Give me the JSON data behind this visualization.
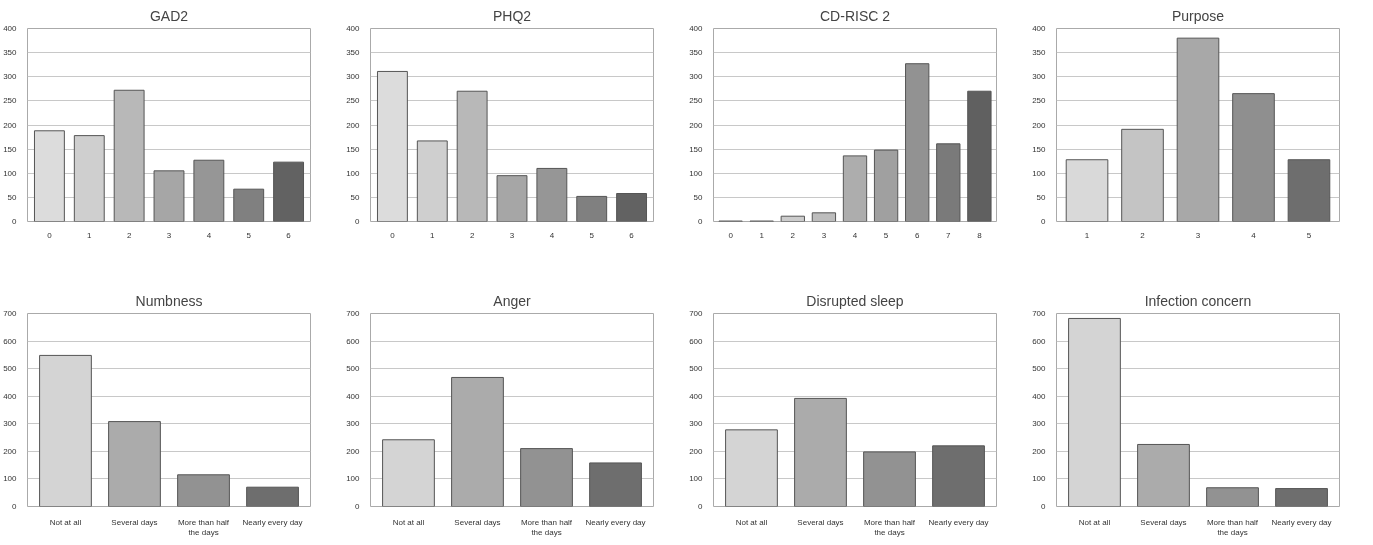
{
  "chart_data": [
    {
      "type": "bar",
      "title": "GAD2",
      "categories": [
        "0",
        "1",
        "2",
        "3",
        "4",
        "5",
        "6"
      ],
      "values": [
        188,
        178,
        272,
        105,
        127,
        67,
        123
      ],
      "colors": [
        "#dcdcdc",
        "#cfcfcf",
        "#b8b8b8",
        "#a6a6a6",
        "#969696",
        "#808080",
        "#626262"
      ],
      "ylim": [
        0,
        400
      ],
      "yticks": [
        0,
        50,
        100,
        150,
        200,
        250,
        300,
        350,
        400
      ],
      "grid": "y"
    },
    {
      "type": "bar",
      "title": "PHQ2",
      "categories": [
        "0",
        "1",
        "2",
        "3",
        "4",
        "5",
        "6"
      ],
      "values": [
        311,
        167,
        270,
        95,
        110,
        52,
        58
      ],
      "colors": [
        "#dcdcdc",
        "#cfcfcf",
        "#b8b8b8",
        "#a6a6a6",
        "#969696",
        "#808080",
        "#626262"
      ],
      "ylim": [
        0,
        400
      ],
      "yticks": [
        0,
        50,
        100,
        150,
        200,
        250,
        300,
        350,
        400
      ],
      "grid": "y"
    },
    {
      "type": "bar",
      "title": "CD-RISC 2",
      "categories": [
        "0",
        "1",
        "2",
        "3",
        "4",
        "5",
        "6",
        "7",
        "8"
      ],
      "values": [
        1,
        1,
        11,
        18,
        136,
        148,
        327,
        161,
        270
      ],
      "colors": [
        "#e0e0e0",
        "#d6d6d6",
        "#cccccc",
        "#bdbdbd",
        "#adadad",
        "#a0a0a0",
        "#929292",
        "#7a7a7a",
        "#606060"
      ],
      "ylim": [
        0,
        400
      ],
      "yticks": [
        0,
        50,
        100,
        150,
        200,
        250,
        300,
        350,
        400
      ],
      "grid": "y"
    },
    {
      "type": "bar",
      "title": "Purpose",
      "categories": [
        "1",
        "2",
        "3",
        "4",
        "5"
      ],
      "values": [
        128,
        191,
        380,
        265,
        128
      ],
      "colors": [
        "#d9d9d9",
        "#c4c4c4",
        "#a8a8a8",
        "#8f8f8f",
        "#6e6e6e"
      ],
      "ylim": [
        0,
        400
      ],
      "yticks": [
        0,
        50,
        100,
        150,
        200,
        250,
        300,
        350,
        400
      ],
      "grid": "y"
    },
    {
      "type": "bar",
      "title": "Numbness",
      "categories": [
        "Not at all",
        "Several days",
        "More than half the days",
        "Nearly every day"
      ],
      "values": [
        548,
        308,
        115,
        70
      ],
      "colors": [
        "#d4d4d4",
        "#ababab",
        "#929292",
        "#6e6e6e"
      ],
      "ylim": [
        0,
        700
      ],
      "yticks": [
        0,
        100,
        200,
        300,
        400,
        500,
        600,
        700
      ],
      "grid": "y"
    },
    {
      "type": "bar",
      "title": "Anger",
      "categories": [
        "Not at all",
        "Several days",
        "More than half the days",
        "Nearly every day"
      ],
      "values": [
        242,
        468,
        210,
        158
      ],
      "colors": [
        "#d4d4d4",
        "#ababab",
        "#929292",
        "#6e6e6e"
      ],
      "ylim": [
        0,
        700
      ],
      "yticks": [
        0,
        100,
        200,
        300,
        400,
        500,
        600,
        700
      ],
      "grid": "y"
    },
    {
      "type": "bar",
      "title": "Disrupted sleep",
      "categories": [
        "Not at all",
        "Several days",
        "More than half the days",
        "Nearly every day"
      ],
      "values": [
        278,
        392,
        198,
        220
      ],
      "colors": [
        "#d4d4d4",
        "#ababab",
        "#929292",
        "#6e6e6e"
      ],
      "ylim": [
        0,
        700
      ],
      "yticks": [
        0,
        100,
        200,
        300,
        400,
        500,
        600,
        700
      ],
      "grid": "y"
    },
    {
      "type": "bar",
      "title": "Infection concern",
      "categories": [
        "Not at all",
        "Several days",
        "More than half the days",
        "Nearly every day"
      ],
      "values": [
        682,
        225,
        68,
        65
      ],
      "colors": [
        "#d4d4d4",
        "#ababab",
        "#929292",
        "#6e6e6e"
      ],
      "ylim": [
        0,
        700
      ],
      "yticks": [
        0,
        100,
        200,
        300,
        400,
        500,
        600,
        700
      ],
      "grid": "y"
    }
  ]
}
